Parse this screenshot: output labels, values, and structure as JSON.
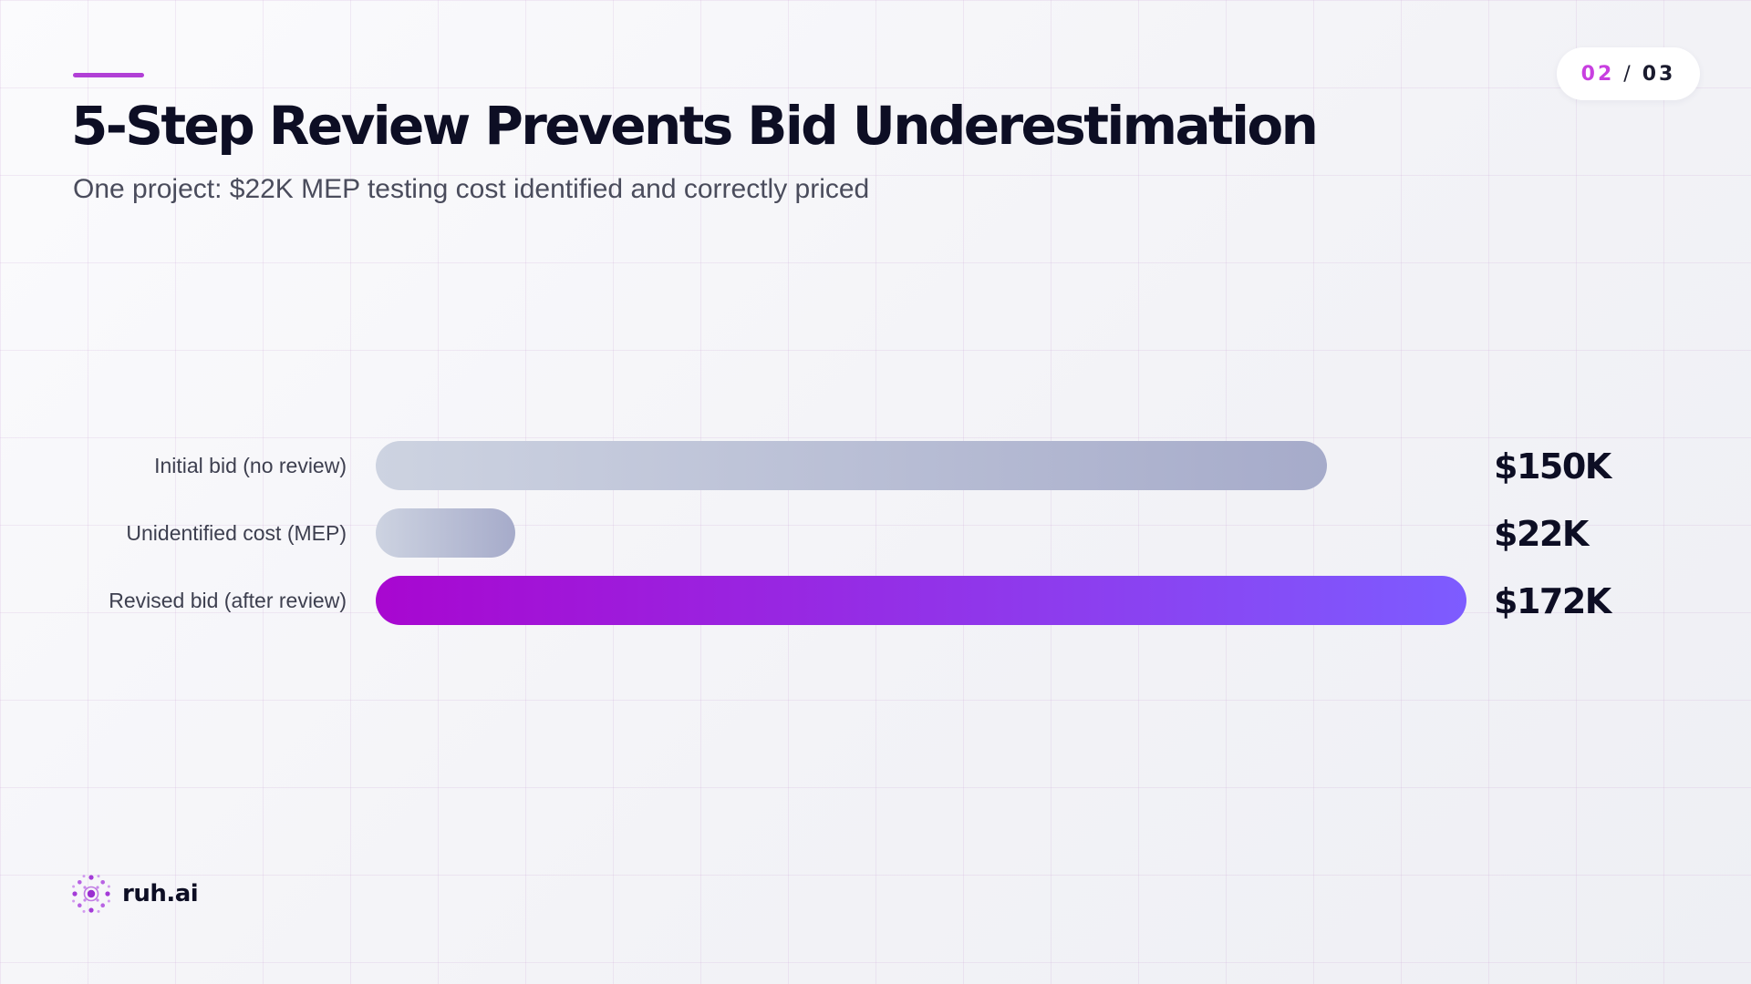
{
  "header": {
    "title": "5-Step Review Prevents Bid Underestimation",
    "subtitle": "One project: $22K MEP testing cost identified and correctly priced"
  },
  "page_indicator": {
    "current": "02",
    "separator": "/",
    "total": "03"
  },
  "chart_data": {
    "type": "bar",
    "orientation": "horizontal",
    "title": "",
    "xlabel": "",
    "ylabel": "",
    "grid": false,
    "categories": [
      "Initial bid (no review)",
      "Unidentified cost (MEP)",
      "Revised bid (after review)"
    ],
    "values": [
      150,
      22,
      172
    ],
    "value_labels": [
      "$150K",
      "$22K",
      "$172K"
    ],
    "unit": "$K",
    "xlim": [
      0,
      172
    ],
    "colors": [
      [
        "#cdd3e1",
        "#a6abca"
      ],
      [
        "#cdd3e1",
        "#a6abca"
      ],
      [
        "#a807d0",
        "#7d5cff"
      ]
    ]
  },
  "brand": {
    "name": "ruh.ai",
    "accent": "#b13fd6",
    "icon": "ruh-ai-logo-icon"
  }
}
